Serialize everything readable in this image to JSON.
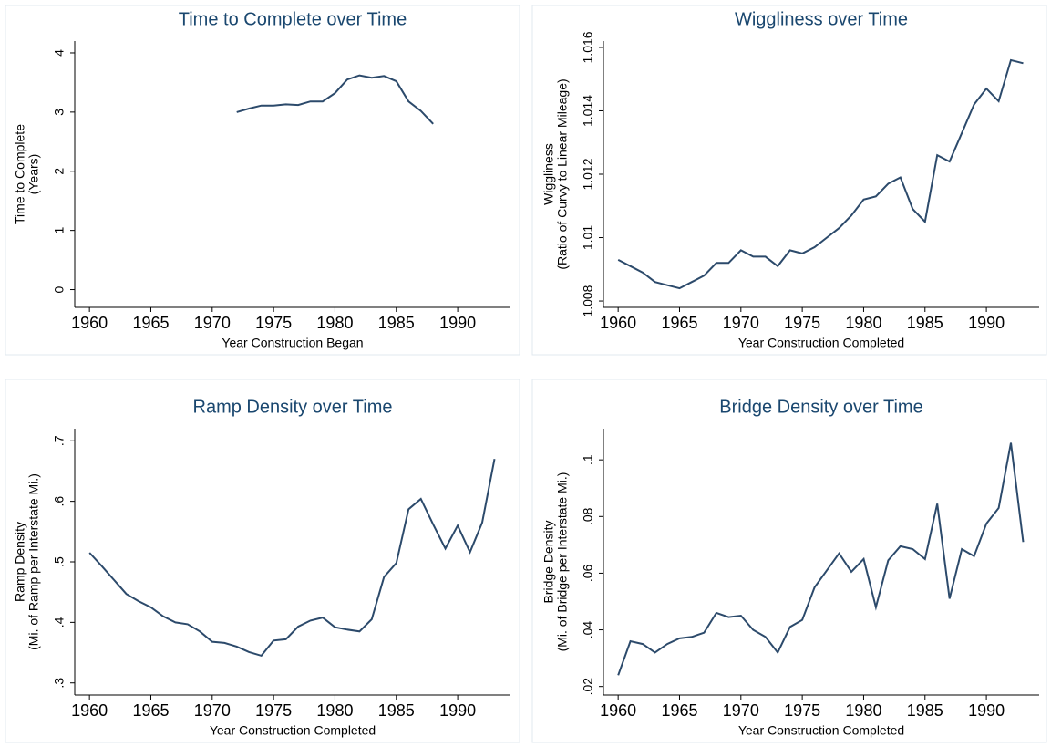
{
  "chart_data": [
    {
      "type": "line",
      "title": "Time to Complete over Time",
      "xlabel": "Year Construction Began",
      "ylabel": [
        "Time to Complete",
        "(Years)"
      ],
      "x": [
        1972,
        1973,
        1974,
        1975,
        1976,
        1977,
        1978,
        1979,
        1980,
        1981,
        1982,
        1983,
        1984,
        1985,
        1986,
        1987,
        1988
      ],
      "values": [
        3.0,
        3.06,
        3.11,
        3.11,
        3.13,
        3.12,
        3.18,
        3.18,
        3.32,
        3.55,
        3.62,
        3.58,
        3.61,
        3.52,
        3.18,
        3.02,
        2.8
      ],
      "color": "#2c4a6b",
      "xlim": [
        1958.8,
        1994.3
      ],
      "xticks": [
        1960,
        1965,
        1970,
        1975,
        1980,
        1985,
        1990
      ],
      "ylim": [
        -0.3,
        4.2
      ],
      "yticks": [
        0,
        1,
        2,
        3,
        4
      ]
    },
    {
      "type": "line",
      "title": "Wiggliness over Time",
      "xlabel": "Year Construction Completed",
      "ylabel": [
        "Wiggliness",
        "(Ratio of Curvy to Linear Mileage)"
      ],
      "x": [
        1960,
        1961,
        1962,
        1963,
        1964,
        1965,
        1966,
        1967,
        1968,
        1969,
        1970,
        1971,
        1972,
        1973,
        1974,
        1975,
        1976,
        1977,
        1978,
        1979,
        1980,
        1981,
        1982,
        1983,
        1984,
        1985,
        1986,
        1987,
        1988,
        1989,
        1990,
        1991,
        1992,
        1993
      ],
      "values": [
        1.0093,
        1.0091,
        1.0089,
        1.0086,
        1.0085,
        1.0084,
        1.0086,
        1.0088,
        1.0092,
        1.0092,
        1.0096,
        1.0094,
        1.0094,
        1.0091,
        1.0096,
        1.0095,
        1.0097,
        1.01,
        1.0103,
        1.0107,
        1.0112,
        1.0113,
        1.0117,
        1.0119,
        1.0109,
        1.0105,
        1.0126,
        1.0124,
        1.0133,
        1.0142,
        1.0147,
        1.0143,
        1.0156,
        1.0155
      ],
      "color": "#2c4a6b",
      "xlim": [
        1958.8,
        1994.3
      ],
      "xticks": [
        1960,
        1965,
        1970,
        1975,
        1980,
        1985,
        1990
      ],
      "ylim": [
        1.0078,
        1.0162
      ],
      "yticks": [
        1.008,
        1.01,
        1.012,
        1.014,
        1.016
      ]
    },
    {
      "type": "line",
      "title": "Ramp Density over Time",
      "xlabel": "Year Construction Completed",
      "ylabel": [
        "Ramp Density",
        "(Mi. of Ramp per Interstate Mi.)"
      ],
      "x": [
        1960,
        1961,
        1962,
        1963,
        1964,
        1965,
        1966,
        1967,
        1968,
        1969,
        1970,
        1971,
        1972,
        1973,
        1974,
        1975,
        1976,
        1977,
        1978,
        1979,
        1980,
        1981,
        1982,
        1983,
        1984,
        1985,
        1986,
        1987,
        1988,
        1989,
        1990,
        1991,
        1992,
        1993
      ],
      "values": [
        0.515,
        0.493,
        0.47,
        0.447,
        0.435,
        0.425,
        0.41,
        0.4,
        0.397,
        0.385,
        0.368,
        0.366,
        0.36,
        0.351,
        0.345,
        0.37,
        0.372,
        0.393,
        0.403,
        0.408,
        0.392,
        0.388,
        0.385,
        0.405,
        0.475,
        0.498,
        0.587,
        0.604,
        0.562,
        0.522,
        0.56,
        0.516,
        0.565,
        0.67
      ],
      "color": "#2c4a6b",
      "xlim": [
        1958.8,
        1994.3
      ],
      "xticks": [
        1960,
        1965,
        1970,
        1975,
        1980,
        1985,
        1990
      ],
      "ylim": [
        0.28,
        0.72
      ],
      "yticks": [
        {
          "value": 0.3,
          "label": ".3"
        },
        {
          "value": 0.4,
          "label": ".4"
        },
        {
          "value": 0.5,
          "label": ".5"
        },
        {
          "value": 0.6,
          "label": ".6"
        },
        {
          "value": 0.7,
          "label": ".7"
        }
      ]
    },
    {
      "type": "line",
      "title": "Bridge Density over Time",
      "xlabel": "Year Construction Completed",
      "ylabel": [
        "Bridge Density",
        "(Mi. of Bridge per Interstate Mi.)"
      ],
      "x": [
        1960,
        1961,
        1962,
        1963,
        1964,
        1965,
        1966,
        1967,
        1968,
        1969,
        1970,
        1971,
        1972,
        1973,
        1974,
        1975,
        1976,
        1977,
        1978,
        1979,
        1980,
        1981,
        1982,
        1983,
        1984,
        1985,
        1986,
        1987,
        1988,
        1989,
        1990,
        1991,
        1992,
        1993
      ],
      "values": [
        0.024,
        0.036,
        0.035,
        0.032,
        0.035,
        0.037,
        0.0375,
        0.039,
        0.046,
        0.0445,
        0.045,
        0.04,
        0.0375,
        0.032,
        0.041,
        0.0435,
        0.055,
        0.061,
        0.067,
        0.0605,
        0.065,
        0.048,
        0.0645,
        0.0695,
        0.0685,
        0.065,
        0.0845,
        0.051,
        0.0685,
        0.066,
        0.0775,
        0.083,
        0.106,
        0.071
      ],
      "color": "#2c4a6b",
      "xlim": [
        1958.8,
        1994.3
      ],
      "xticks": [
        1960,
        1965,
        1970,
        1975,
        1980,
        1985,
        1990
      ],
      "ylim": [
        0.017,
        0.111
      ],
      "yticks": [
        {
          "value": 0.02,
          "label": ".02"
        },
        {
          "value": 0.04,
          "label": ".04"
        },
        {
          "value": 0.06,
          "label": ".06"
        },
        {
          "value": 0.08,
          "label": ".08"
        },
        {
          "value": 0.1,
          "label": ".1"
        }
      ]
    }
  ]
}
